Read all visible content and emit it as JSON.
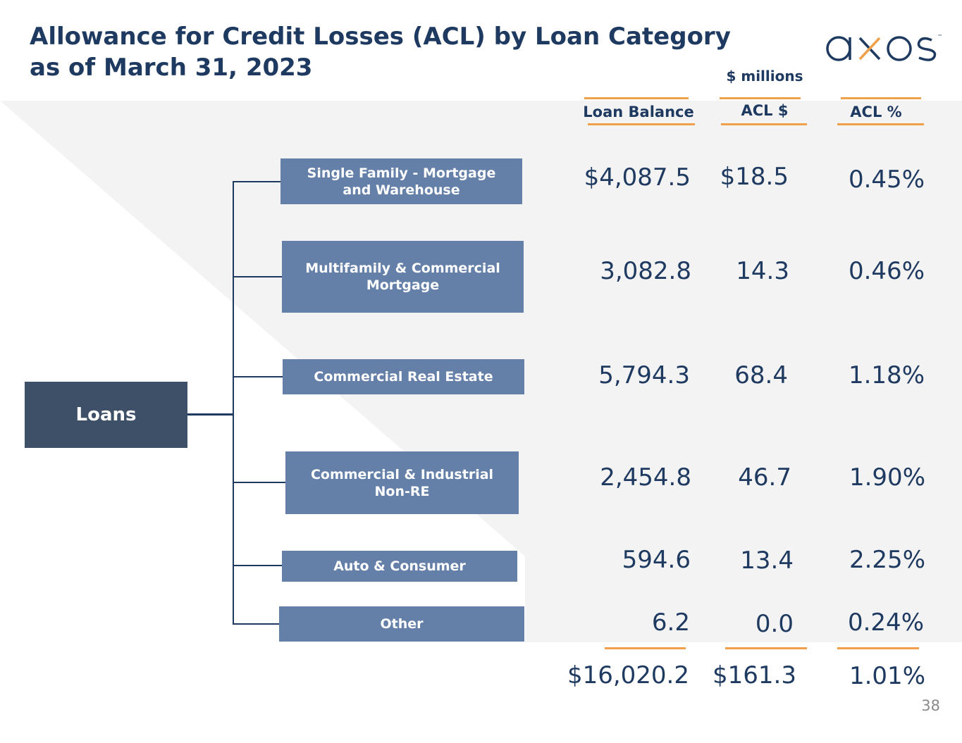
{
  "title": {
    "line1": "Allowance for Credit Losses (ACL) by Loan Category",
    "line2": "as of March 31, 2023"
  },
  "logo": {
    "text": "axos",
    "tm": "™"
  },
  "units_label": "$ millions",
  "columns": {
    "loan_balance": "Loan Balance",
    "acl_dollars": "ACL $",
    "acl_percent": "ACL %"
  },
  "root_label": "Loans",
  "rows": [
    {
      "category_line1": "Single Family - Mortgage",
      "category_line2": "and Warehouse",
      "loan_balance": "$4,087.5",
      "acl_dollars": "$18.5",
      "acl_percent": "0.45%"
    },
    {
      "category_line1": "Multifamily & Commercial",
      "category_line2": "Mortgage",
      "loan_balance": "3,082.8",
      "acl_dollars": "14.3",
      "acl_percent": "0.46%"
    },
    {
      "category_line1": "Commercial Real Estate",
      "category_line2": "",
      "loan_balance": "5,794.3",
      "acl_dollars": "68.4",
      "acl_percent": "1.18%"
    },
    {
      "category_line1": "Commercial & Industrial",
      "category_line2": "Non-RE",
      "loan_balance": "2,454.8",
      "acl_dollars": "46.7",
      "acl_percent": "1.90%"
    },
    {
      "category_line1": "Auto & Consumer",
      "category_line2": "",
      "loan_balance": "594.6",
      "acl_dollars": "13.4",
      "acl_percent": "2.25%"
    },
    {
      "category_line1": "Other",
      "category_line2": "",
      "loan_balance": "6.2",
      "acl_dollars": "0.0",
      "acl_percent": "0.24%"
    }
  ],
  "totals": {
    "loan_balance": "$16,020.2",
    "acl_dollars": "$161.3",
    "acl_percent": "1.01%"
  },
  "page_number": "38",
  "colors": {
    "title": "#1f3a60",
    "root_box": "#3d5068",
    "category_box": "#6580a8",
    "accent_rule": "#f0a04b",
    "background_panel": "#f3f3f3",
    "logo_letters": "#1f3a60",
    "logo_x": "#f0a04b"
  }
}
